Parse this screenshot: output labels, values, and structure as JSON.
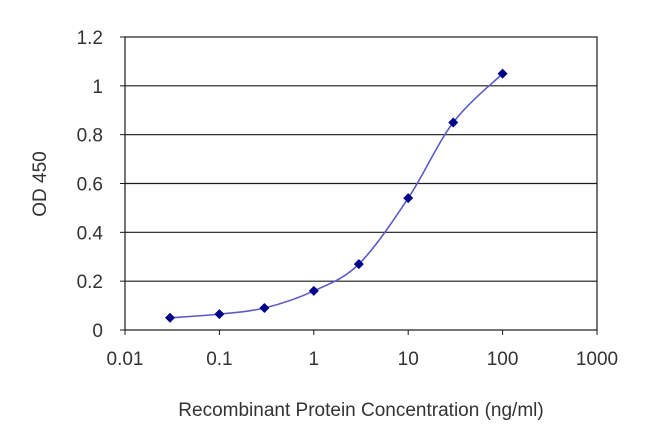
{
  "chart_data": {
    "type": "line",
    "x_scale": "log",
    "xlabel": "Recombinant Protein Concentration (ng/ml)",
    "ylabel": "OD 450",
    "xlim": [
      0.01,
      1000
    ],
    "ylim": [
      0,
      1.2
    ],
    "x_ticks": [
      "0.01",
      "0.1",
      "1",
      "10",
      "100",
      "1000"
    ],
    "y_ticks": [
      "0",
      "0.2",
      "0.4",
      "0.6",
      "0.8",
      "1",
      "1.2"
    ],
    "grid": "horizontal",
    "series": [
      {
        "x": [
          0.03,
          0.1,
          0.3,
          1,
          3,
          10,
          30,
          100
        ],
        "y": [
          0.05,
          0.065,
          0.09,
          0.16,
          0.27,
          0.54,
          0.85,
          1.05
        ],
        "color": "#00008b",
        "line_color": "#5b5bc8",
        "marker": "diamond"
      }
    ]
  }
}
